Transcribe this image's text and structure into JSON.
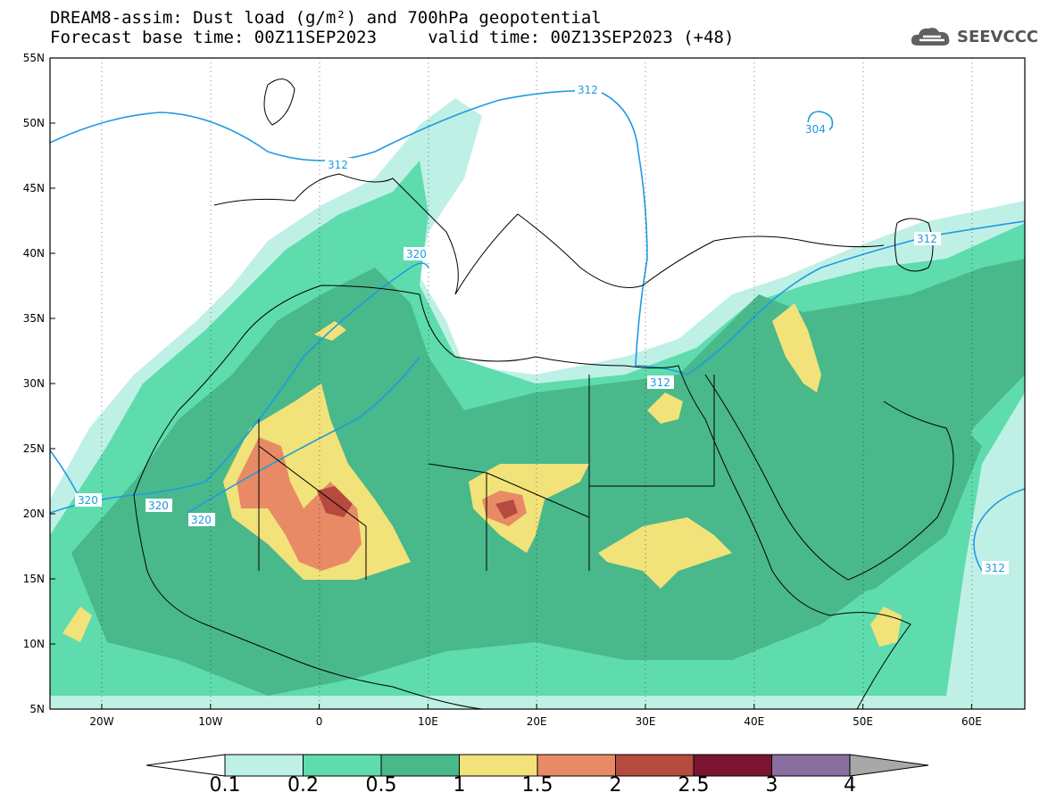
{
  "header": {
    "title_line1": "DREAM8-assim: Dust load (g/m²) and 700hPa geopotential",
    "title_line2": "Forecast base time: 00Z11SEP2023     valid time: 00Z13SEP2023 (+48)",
    "logo_text": "SEEVCCC"
  },
  "map": {
    "lat_labels": [
      "55N",
      "50N",
      "45N",
      "40N",
      "35N",
      "30N",
      "25N",
      "20N",
      "15N",
      "10N",
      "5N"
    ],
    "lon_labels": [
      "20W",
      "10W",
      "0",
      "10E",
      "20E",
      "30E",
      "40E",
      "50E",
      "60E"
    ],
    "contour_labels": [
      "312",
      "312",
      "304",
      "312",
      "312",
      "320",
      "320",
      "320",
      "320",
      "312"
    ],
    "colors": {
      "level_0_1": "#bff0e6",
      "level_0_2": "#5edcad",
      "level_0_5": "#49b88b",
      "level_1": "#f2e27a",
      "level_1_5": "#e88a66",
      "level_2": "#b54a3e",
      "level_2_5": "#7a1430",
      "level_3": "#8a6ea0",
      "level_4": "#a8a8a8",
      "contour": "#1e9be0",
      "coast": "#000000"
    }
  },
  "colorbar": {
    "labels": [
      "0.1",
      "0.2",
      "0.5",
      "1",
      "1.5",
      "2",
      "2.5",
      "3",
      "4"
    ],
    "colors": [
      "#bff0e6",
      "#5edcad",
      "#49b88b",
      "#f2e27a",
      "#e88a66",
      "#b54a3e",
      "#7a1430",
      "#8a6ea0",
      "#a8a8a8"
    ]
  }
}
